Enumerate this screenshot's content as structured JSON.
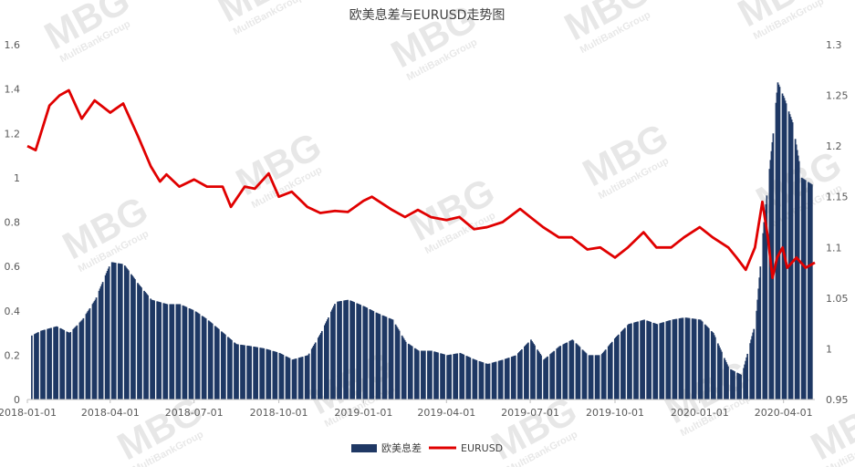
{
  "chart_data": {
    "type": "bar+line",
    "title": "欧美息差与EURUSD走势图",
    "x_tick_labels": [
      "2018-01-01",
      "2018-04-01",
      "2018-07-01",
      "2018-10-01",
      "2019-01-01",
      "2019-04-01",
      "2019-07-01",
      "2019-10-01",
      "2020-01-01",
      "2020-04-01"
    ],
    "x_range": [
      "2018-01-01",
      "2020-05-05"
    ],
    "y_left": {
      "ticks": [
        "0",
        "0.2",
        "0.4",
        "0.6",
        "0.8",
        "1",
        "1.2",
        "1.4",
        "1.6"
      ],
      "range": [
        0,
        1.6
      ]
    },
    "y_right": {
      "ticks": [
        "0.95",
        "1",
        "1.05",
        "1.1",
        "1.15",
        "1.2",
        "1.25",
        "1.3"
      ],
      "range": [
        0.95,
        1.3
      ]
    },
    "legend_position": "bottom",
    "grid": false,
    "series": [
      {
        "name": "欧美息差",
        "axis": "left",
        "kind": "bar",
        "color": "#1f3864",
        "points": [
          [
            "2018-01-01",
            0.28
          ],
          [
            "2018-01-15",
            0.31
          ],
          [
            "2018-02-01",
            0.33
          ],
          [
            "2018-02-15",
            0.3
          ],
          [
            "2018-03-01",
            0.36
          ],
          [
            "2018-03-15",
            0.45
          ],
          [
            "2018-04-01",
            0.62
          ],
          [
            "2018-04-15",
            0.61
          ],
          [
            "2018-05-01",
            0.52
          ],
          [
            "2018-05-15",
            0.45
          ],
          [
            "2018-06-01",
            0.43
          ],
          [
            "2018-06-15",
            0.43
          ],
          [
            "2018-07-01",
            0.4
          ],
          [
            "2018-07-15",
            0.36
          ],
          [
            "2018-08-01",
            0.3
          ],
          [
            "2018-08-15",
            0.25
          ],
          [
            "2018-09-01",
            0.24
          ],
          [
            "2018-09-15",
            0.23
          ],
          [
            "2018-10-01",
            0.21
          ],
          [
            "2018-10-15",
            0.18
          ],
          [
            "2018-11-01",
            0.2
          ],
          [
            "2018-11-15",
            0.3
          ],
          [
            "2018-12-01",
            0.44
          ],
          [
            "2018-12-15",
            0.45
          ],
          [
            "2019-01-01",
            0.42
          ],
          [
            "2019-01-15",
            0.39
          ],
          [
            "2019-02-01",
            0.36
          ],
          [
            "2019-02-15",
            0.26
          ],
          [
            "2019-03-01",
            0.22
          ],
          [
            "2019-03-15",
            0.22
          ],
          [
            "2019-04-01",
            0.2
          ],
          [
            "2019-04-15",
            0.21
          ],
          [
            "2019-05-01",
            0.18
          ],
          [
            "2019-05-15",
            0.16
          ],
          [
            "2019-06-01",
            0.18
          ],
          [
            "2019-06-15",
            0.2
          ],
          [
            "2019-07-01",
            0.27
          ],
          [
            "2019-07-15",
            0.18
          ],
          [
            "2019-08-01",
            0.24
          ],
          [
            "2019-08-15",
            0.27
          ],
          [
            "2019-09-01",
            0.2
          ],
          [
            "2019-09-15",
            0.2
          ],
          [
            "2019-10-01",
            0.28
          ],
          [
            "2019-10-15",
            0.34
          ],
          [
            "2019-11-01",
            0.36
          ],
          [
            "2019-11-15",
            0.34
          ],
          [
            "2019-12-01",
            0.36
          ],
          [
            "2019-12-15",
            0.37
          ],
          [
            "2020-01-01",
            0.36
          ],
          [
            "2020-01-15",
            0.3
          ],
          [
            "2020-02-01",
            0.14
          ],
          [
            "2020-02-15",
            0.11
          ],
          [
            "2020-03-01",
            0.35
          ],
          [
            "2020-03-10",
            0.8
          ],
          [
            "2020-03-20",
            1.2
          ],
          [
            "2020-03-25",
            1.43
          ],
          [
            "2020-04-01",
            1.36
          ],
          [
            "2020-04-10",
            1.25
          ],
          [
            "2020-04-20",
            1.0
          ],
          [
            "2020-05-01",
            0.97
          ]
        ]
      },
      {
        "name": "EURUSD",
        "axis": "right",
        "kind": "line",
        "color": "#e00000",
        "points": [
          [
            "2018-01-01",
            1.2
          ],
          [
            "2018-01-10",
            1.196
          ],
          [
            "2018-01-25",
            1.24
          ],
          [
            "2018-02-05",
            1.25
          ],
          [
            "2018-02-15",
            1.255
          ],
          [
            "2018-03-01",
            1.227
          ],
          [
            "2018-03-15",
            1.245
          ],
          [
            "2018-04-01",
            1.233
          ],
          [
            "2018-04-15",
            1.242
          ],
          [
            "2018-05-01",
            1.21
          ],
          [
            "2018-05-15",
            1.18
          ],
          [
            "2018-05-25",
            1.165
          ],
          [
            "2018-06-01",
            1.172
          ],
          [
            "2018-06-15",
            1.16
          ],
          [
            "2018-07-01",
            1.167
          ],
          [
            "2018-07-15",
            1.16
          ],
          [
            "2018-08-01",
            1.16
          ],
          [
            "2018-08-10",
            1.14
          ],
          [
            "2018-08-25",
            1.16
          ],
          [
            "2018-09-05",
            1.158
          ],
          [
            "2018-09-20",
            1.173
          ],
          [
            "2018-10-01",
            1.15
          ],
          [
            "2018-10-15",
            1.155
          ],
          [
            "2018-11-01",
            1.14
          ],
          [
            "2018-11-15",
            1.134
          ],
          [
            "2018-12-01",
            1.136
          ],
          [
            "2018-12-15",
            1.135
          ],
          [
            "2019-01-01",
            1.146
          ],
          [
            "2019-01-10",
            1.15
          ],
          [
            "2019-02-01",
            1.137
          ],
          [
            "2019-02-15",
            1.13
          ],
          [
            "2019-03-01",
            1.137
          ],
          [
            "2019-03-15",
            1.13
          ],
          [
            "2019-04-01",
            1.127
          ],
          [
            "2019-04-15",
            1.13
          ],
          [
            "2019-05-01",
            1.118
          ],
          [
            "2019-05-15",
            1.12
          ],
          [
            "2019-06-01",
            1.125
          ],
          [
            "2019-06-20",
            1.138
          ],
          [
            "2019-07-01",
            1.13
          ],
          [
            "2019-07-15",
            1.12
          ],
          [
            "2019-08-01",
            1.11
          ],
          [
            "2019-08-15",
            1.11
          ],
          [
            "2019-09-01",
            1.098
          ],
          [
            "2019-09-15",
            1.1
          ],
          [
            "2019-10-01",
            1.09
          ],
          [
            "2019-10-15",
            1.1
          ],
          [
            "2019-11-01",
            1.115
          ],
          [
            "2019-11-15",
            1.1
          ],
          [
            "2019-12-01",
            1.1
          ],
          [
            "2019-12-15",
            1.11
          ],
          [
            "2020-01-01",
            1.12
          ],
          [
            "2020-01-15",
            1.11
          ],
          [
            "2020-02-01",
            1.1
          ],
          [
            "2020-02-10",
            1.09
          ],
          [
            "2020-02-20",
            1.078
          ],
          [
            "2020-03-01",
            1.1
          ],
          [
            "2020-03-09",
            1.145
          ],
          [
            "2020-03-15",
            1.11
          ],
          [
            "2020-03-20",
            1.07
          ],
          [
            "2020-03-25",
            1.09
          ],
          [
            "2020-03-31",
            1.1
          ],
          [
            "2020-04-05",
            1.08
          ],
          [
            "2020-04-15",
            1.09
          ],
          [
            "2020-04-25",
            1.08
          ],
          [
            "2020-05-05",
            1.085
          ]
        ]
      }
    ]
  },
  "watermark": {
    "big": "MBG",
    "small": "MultiBankGroup"
  }
}
